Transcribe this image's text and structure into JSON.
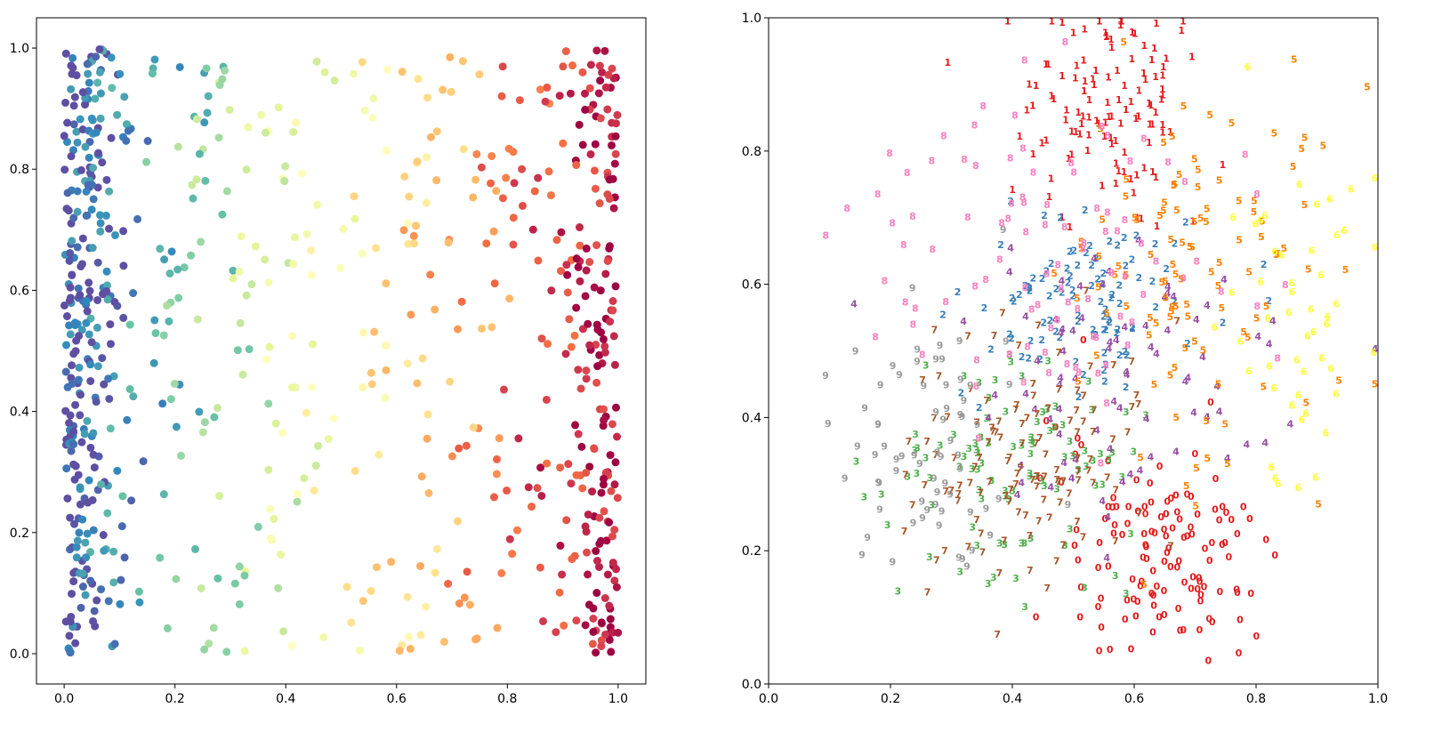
{
  "chart_data": [
    {
      "type": "scatter",
      "title": "",
      "xlabel": "",
      "ylabel": "",
      "xlim": [
        -0.05,
        1.05
      ],
      "ylim": [
        -0.05,
        1.05
      ],
      "xticks": [
        "0.0",
        "0.2",
        "0.4",
        "0.6",
        "0.8",
        "1.0"
      ],
      "yticks": [
        "0.0",
        "0.2",
        "0.4",
        "0.6",
        "0.8",
        "1.0"
      ],
      "grid": false,
      "colormap": "Spectral",
      "color_encoding": "x",
      "points": {
        "count": 800,
        "x_range": [
          0,
          1
        ],
        "y_range": [
          0,
          1
        ],
        "note_density": "dense near x=0 and x=1, sparser toward x=0.4-0.6"
      }
    },
    {
      "type": "scatter",
      "title": "",
      "xlabel": "",
      "ylabel": "",
      "xlim": [
        0.0,
        1.0
      ],
      "ylim": [
        0.0,
        1.0
      ],
      "xticks": [
        "0.0",
        "0.2",
        "0.4",
        "0.6",
        "0.8",
        "1.0"
      ],
      "yticks": [
        "0.0",
        "0.2",
        "0.4",
        "0.6",
        "0.8",
        "1.0"
      ],
      "grid": false,
      "marker": "digit text labels 0-9",
      "digit_colors": {
        "0": "#e41a1c",
        "1": "#e41a1c",
        "2": "#377eb8",
        "3": "#4daf4a",
        "4": "#984ea3",
        "5": "#ff7f00",
        "6": "#ffff33",
        "7": "#a65628",
        "8": "#f781bf",
        "9": "#999999"
      },
      "clusters": [
        {
          "digit": "0",
          "center": [
            0.64,
            0.2
          ],
          "spread": [
            0.08,
            0.09
          ],
          "count": 130
        },
        {
          "digit": "1",
          "center": [
            0.56,
            0.86
          ],
          "spread": [
            0.08,
            0.08
          ],
          "count": 120
        },
        {
          "digit": "2",
          "center": [
            0.52,
            0.58
          ],
          "spread": [
            0.09,
            0.07
          ],
          "count": 100
        },
        {
          "digit": "3",
          "center": [
            0.4,
            0.33
          ],
          "spread": [
            0.1,
            0.08
          ],
          "count": 100
        },
        {
          "digit": "4",
          "center": [
            0.58,
            0.44
          ],
          "spread": [
            0.14,
            0.11
          ],
          "count": 80
        },
        {
          "digit": "5",
          "center": [
            0.68,
            0.6
          ],
          "spread": [
            0.12,
            0.15
          ],
          "count": 110
        },
        {
          "digit": "6",
          "center": [
            0.88,
            0.55
          ],
          "spread": [
            0.07,
            0.12
          ],
          "count": 50
        },
        {
          "digit": "7",
          "center": [
            0.42,
            0.34
          ],
          "spread": [
            0.1,
            0.1
          ],
          "count": 120
        },
        {
          "digit": "8",
          "center": [
            0.45,
            0.65
          ],
          "spread": [
            0.14,
            0.12
          ],
          "count": 100
        },
        {
          "digit": "9",
          "center": [
            0.26,
            0.38
          ],
          "spread": [
            0.09,
            0.12
          ],
          "count": 70
        }
      ]
    }
  ]
}
